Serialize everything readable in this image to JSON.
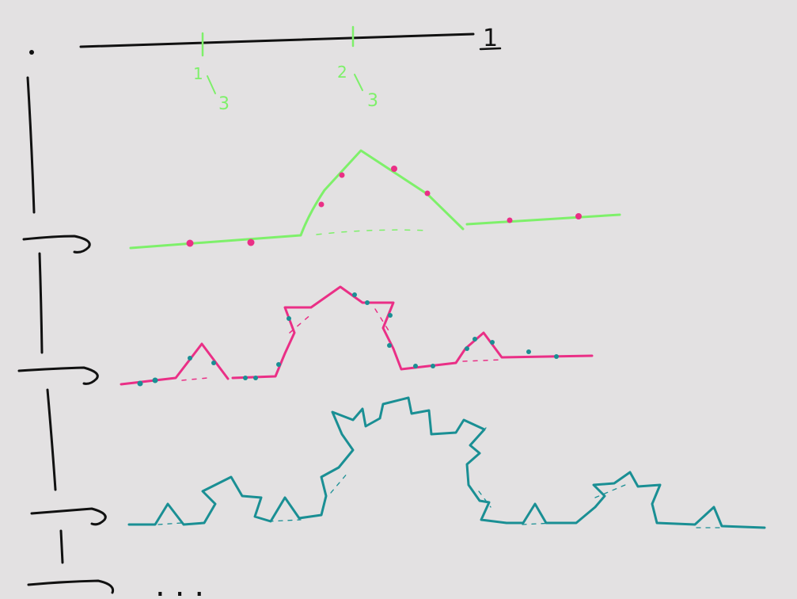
{
  "colors": {
    "background": "#e3e1e2",
    "ink": "#111111",
    "green": "#7ef06a",
    "magenta": "#ea2f86",
    "teal": "#1a8f94"
  },
  "labels": {
    "unit_length": "1",
    "third_one_numerator": "1",
    "third_one_denominator": "3",
    "third_two_numerator": "2",
    "third_two_denominator": "3",
    "continuation": "..."
  },
  "iterations": [
    {
      "level": 0,
      "color": "green"
    },
    {
      "level": 1,
      "color": "green"
    },
    {
      "level": 2,
      "color": "magenta"
    },
    {
      "level": 3,
      "color": "teal"
    }
  ]
}
